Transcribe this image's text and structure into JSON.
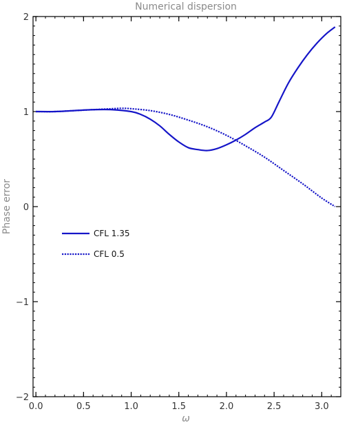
{
  "chart_data": {
    "type": "line",
    "title": "Numerical dispersion",
    "xlabel": "ω",
    "ylabel": "Phase error",
    "xlim": [
      -0.03,
      3.2
    ],
    "ylim": [
      -2,
      2
    ],
    "x_ticks": [
      0.0,
      0.5,
      1.0,
      1.5,
      2.0,
      2.5,
      3.0
    ],
    "x_tick_labels": [
      "0.0",
      "0.5",
      "1.0",
      "1.5",
      "2.0",
      "2.5",
      "3.0"
    ],
    "y_ticks": [
      -2,
      -1,
      0,
      1,
      2
    ],
    "y_tick_labels": [
      "−2",
      "−1",
      "0",
      "1",
      "2"
    ],
    "grid": false,
    "frame": true,
    "legend_position": "left-middle",
    "series": [
      {
        "name": "CFL 1.35",
        "style": "solid",
        "color": "#1515c8",
        "x": [
          0.0,
          0.2,
          0.4,
          0.6,
          0.8,
          1.0,
          1.1,
          1.2,
          1.3,
          1.4,
          1.5,
          1.6,
          1.7,
          1.8,
          1.9,
          2.0,
          2.1,
          2.2,
          2.3,
          2.4,
          2.47,
          2.55,
          2.65,
          2.75,
          2.85,
          2.95,
          3.05,
          3.14
        ],
        "y": [
          1.0,
          1.0,
          1.01,
          1.02,
          1.02,
          1.0,
          0.97,
          0.92,
          0.85,
          0.76,
          0.68,
          0.62,
          0.6,
          0.59,
          0.61,
          0.65,
          0.7,
          0.76,
          0.83,
          0.89,
          0.94,
          1.1,
          1.3,
          1.46,
          1.6,
          1.72,
          1.82,
          1.89
        ]
      },
      {
        "name": "CFL 0.5",
        "style": "dotted",
        "color": "#1515c8",
        "x": [
          0.0,
          0.2,
          0.4,
          0.6,
          0.8,
          0.9,
          1.0,
          1.2,
          1.4,
          1.6,
          1.8,
          2.0,
          2.2,
          2.4,
          2.6,
          2.8,
          3.0,
          3.14
        ],
        "y": [
          1.0,
          1.0,
          1.01,
          1.02,
          1.03,
          1.035,
          1.03,
          1.01,
          0.97,
          0.91,
          0.84,
          0.75,
          0.64,
          0.52,
          0.38,
          0.24,
          0.09,
          0.0
        ]
      }
    ]
  },
  "colors": {
    "line": "#1515c8",
    "frame": "#000000",
    "title": "#8a8a8a"
  }
}
